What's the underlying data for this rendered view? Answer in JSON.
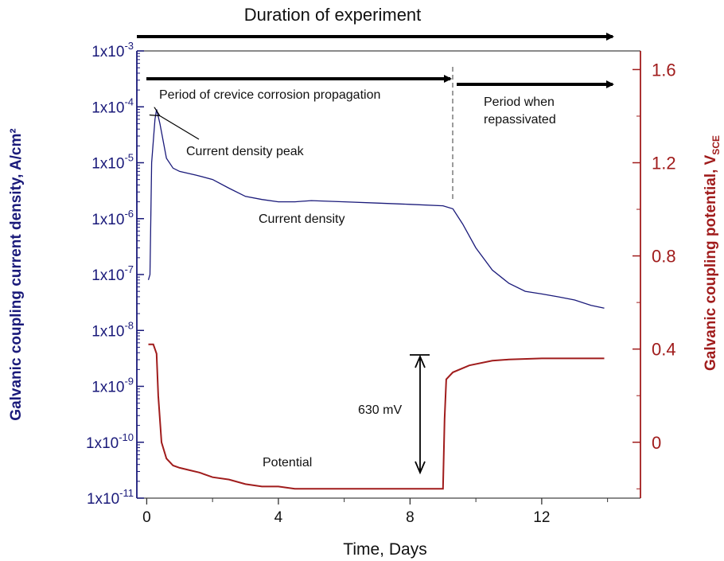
{
  "chart_data": {
    "type": "line",
    "title": "Duration of experiment",
    "xlabel": "Time, Days",
    "ylabel_left": "Galvanic coupling current density, A/cm²",
    "ylabel_right": "Galvanic coupling potential, VSCE",
    "xlim": [
      -0.3,
      15.0
    ],
    "x_ticks": [
      "0",
      "4",
      "8",
      "12"
    ],
    "ylim_left": [
      1e-11,
      0.001
    ],
    "ylim_right": [
      -0.24,
      1.68
    ],
    "y_left_ticks": [
      {
        "base": "1x10",
        "exp": "-3"
      },
      {
        "base": "1x10",
        "exp": "-4"
      },
      {
        "base": "1x10",
        "exp": "-5"
      },
      {
        "base": "1x10",
        "exp": "-6"
      },
      {
        "base": "1x10",
        "exp": "-7"
      },
      {
        "base": "1x10",
        "exp": "-8"
      },
      {
        "base": "1x10",
        "exp": "-9"
      },
      {
        "base": "1x10",
        "exp": "-10"
      },
      {
        "base": "1x10",
        "exp": "-11"
      }
    ],
    "y_right_ticks": [
      "1.6",
      "1.2",
      "0.8",
      "0.4",
      "0"
    ],
    "y_left_scale": "log",
    "series": [
      {
        "name": "Current density",
        "axis": "left",
        "color": "#1a1a7a",
        "x": [
          0.05,
          0.1,
          0.15,
          0.25,
          0.3,
          0.4,
          0.6,
          0.8,
          1.0,
          1.5,
          2.0,
          2.5,
          3.0,
          3.5,
          4.0,
          4.5,
          5.0,
          6.0,
          7.0,
          8.0,
          9.0,
          9.3,
          9.6,
          10.0,
          10.5,
          11.0,
          11.5,
          12.0,
          12.5,
          13.0,
          13.5,
          13.9
        ],
        "values": [
          8e-08,
          1e-07,
          1e-05,
          6e-05,
          9e-05,
          5e-05,
          1.2e-05,
          8e-06,
          7e-06,
          6e-06,
          5e-06,
          3.5e-06,
          2.5e-06,
          2.2e-06,
          2e-06,
          2e-06,
          2.1e-06,
          2e-06,
          1.9e-06,
          1.8e-06,
          1.7e-06,
          1.5e-06,
          8e-07,
          3e-07,
          1.2e-07,
          7e-08,
          5e-08,
          4.5e-08,
          4e-08,
          3.5e-08,
          2.8e-08,
          2.5e-08
        ]
      },
      {
        "name": "Potential",
        "axis": "right",
        "color": "#a01c1c",
        "x": [
          0.05,
          0.2,
          0.3,
          0.35,
          0.45,
          0.6,
          0.8,
          1.0,
          1.3,
          1.6,
          2.0,
          2.5,
          3.0,
          3.5,
          4.0,
          4.5,
          5.0,
          6.0,
          7.0,
          8.0,
          9.0,
          9.05,
          9.1,
          9.3,
          9.8,
          10.5,
          11.0,
          12.0,
          13.0,
          13.9
        ],
        "values": [
          0.42,
          0.42,
          0.38,
          0.2,
          0.0,
          -0.07,
          -0.1,
          -0.11,
          -0.12,
          -0.13,
          -0.15,
          -0.16,
          -0.18,
          -0.19,
          -0.19,
          -0.2,
          -0.2,
          -0.2,
          -0.2,
          -0.2,
          -0.2,
          0.1,
          0.27,
          0.3,
          0.33,
          0.35,
          0.355,
          0.36,
          0.36,
          0.36
        ]
      }
    ],
    "annotations": {
      "duration": "Duration of experiment",
      "propagation": "Period of crevice corrosion propagation",
      "repassivated_line1": "Period when",
      "repassivated_line2": "repassivated",
      "peak": "Current density peak",
      "current": "Current density",
      "potential": "Potential",
      "delta": "630 mV"
    },
    "grid": false,
    "legend": "none"
  }
}
